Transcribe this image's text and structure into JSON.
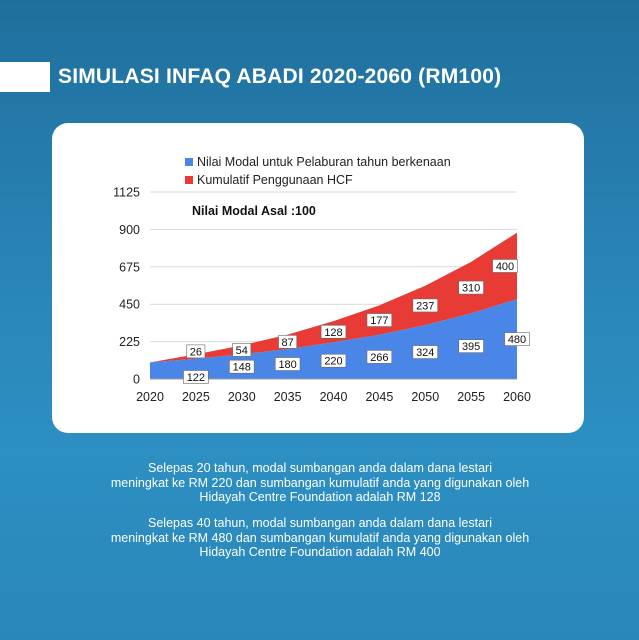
{
  "title": "SIMULASI INFAQ ABADI 2020-2060 (RM100)",
  "colors": {
    "series_modal": "#4a86e8",
    "series_hcf": "#e83b36",
    "background": "#2a86b8"
  },
  "chart_data": {
    "type": "area",
    "stacked": true,
    "x": [
      "2020",
      "2025",
      "2030",
      "2035",
      "2040",
      "2045",
      "2050",
      "2055",
      "2060"
    ],
    "yticks": [
      "0",
      "225",
      "450",
      "675",
      "900",
      "1125"
    ],
    "ylim": [
      0,
      1125
    ],
    "annotation": "Nilai Modal Asal :100",
    "legend_position": "top",
    "series": [
      {
        "name": "Nilai Modal untuk Pelaburan tahun berkenaan",
        "color": "#4a86e8",
        "values": [
          100,
          122,
          148,
          180,
          220,
          266,
          324,
          395,
          480
        ],
        "labels": [
          "",
          "122",
          "148",
          "180",
          "220",
          "266",
          "324",
          "395",
          "480"
        ]
      },
      {
        "name": "Kumulatif Penggunaan HCF",
        "color": "#e83b36",
        "values": [
          0,
          26,
          54,
          87,
          128,
          177,
          237,
          310,
          400
        ],
        "labels": [
          "",
          "26",
          "54",
          "87",
          "128",
          "177",
          "237",
          "310",
          "400"
        ]
      }
    ]
  },
  "caption": {
    "paragraph1": [
      "Selepas 20 tahun, modal sumbangan anda dalam dana lestari",
      "meningkat ke RM 220 dan sumbangan kumulatif anda yang digunakan oleh",
      "Hidayah Centre Foundation adalah RM 128"
    ],
    "paragraph2": [
      "Selepas 40 tahun, modal sumbangan anda dalam dana lestari",
      "meningkat ke RM 480 dan sumbangan kumulatif anda yang digunakan oleh",
      "Hidayah Centre Foundation adalah RM 400"
    ]
  }
}
